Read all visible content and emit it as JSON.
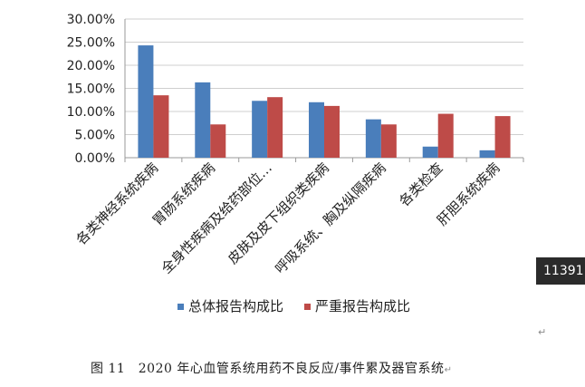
{
  "chart_data": {
    "type": "bar",
    "categories": [
      "各类神经系统疾病",
      "胃肠系统疾病",
      "全身性疾病及给药部位…",
      "皮肤及皮下组织类疾病",
      "呼吸系统、胸及纵隔疾病",
      "各类检查",
      "肝胆系统疾病"
    ],
    "series": [
      {
        "name": "总体报告构成比",
        "color": "#4a7ebb",
        "values": [
          24.3,
          16.3,
          12.3,
          12.0,
          8.3,
          2.4,
          1.6
        ]
      },
      {
        "name": "严重报告构成比",
        "color": "#be4b48",
        "values": [
          13.5,
          7.2,
          13.1,
          11.2,
          7.2,
          9.5,
          9.0
        ]
      }
    ],
    "yticks": [
      "0.00%",
      "5.00%",
      "10.00%",
      "15.00%",
      "20.00%",
      "25.00%",
      "30.00%"
    ],
    "ylim": [
      0,
      30
    ],
    "grid": true,
    "legend": "bottom"
  },
  "caption": {
    "text": "图 11　2020 年心血管系统用药不良反应/事件累及器官系统",
    "mark": "↵"
  },
  "page_badge": "11391",
  "para_mark": "↵"
}
